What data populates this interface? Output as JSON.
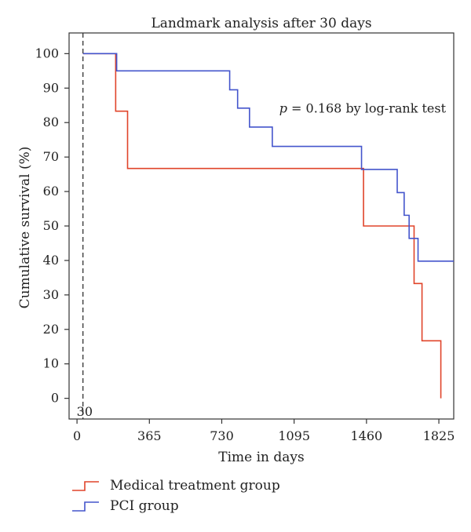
{
  "chart_data": {
    "type": "line",
    "title": "Landmark analysis after 30 days",
    "xlabel": "Time in days",
    "ylabel": "Cumulative survival (%)",
    "xlim": [
      -40,
      1900
    ],
    "ylim": [
      -6,
      106
    ],
    "xticks": [
      0,
      365,
      730,
      1095,
      1460,
      1825
    ],
    "yticks": [
      0,
      10,
      20,
      30,
      40,
      50,
      60,
      70,
      80,
      90,
      100
    ],
    "landmark": {
      "x": 30,
      "label": "30"
    },
    "annotation": {
      "p_symbol": "p",
      "text": " = 0.168 by log-rank test",
      "x": 1020,
      "y": 84
    },
    "grid": false,
    "series": [
      {
        "name": "Medical treatment group",
        "color": "#e0442a",
        "steps": [
          [
            30,
            100
          ],
          [
            195,
            83.3
          ],
          [
            255,
            66.7
          ],
          [
            1445,
            50
          ],
          [
            1700,
            33.3
          ],
          [
            1740,
            16.7
          ],
          [
            1835,
            0
          ]
        ],
        "end_x": 1835
      },
      {
        "name": "PCI group",
        "color": "#4455cc",
        "steps": [
          [
            30,
            100
          ],
          [
            200,
            95
          ],
          [
            770,
            89.5
          ],
          [
            810,
            84.2
          ],
          [
            870,
            78.7
          ],
          [
            985,
            73.1
          ],
          [
            1435,
            66.4
          ],
          [
            1615,
            59.7
          ],
          [
            1650,
            53.1
          ],
          [
            1675,
            46.4
          ],
          [
            1720,
            39.8
          ]
        ],
        "end_x": 1900
      }
    ]
  },
  "legend": {
    "items": [
      {
        "label": "Medical treatment group",
        "color": "#e0442a"
      },
      {
        "label": "PCI group",
        "color": "#4455cc"
      }
    ]
  }
}
